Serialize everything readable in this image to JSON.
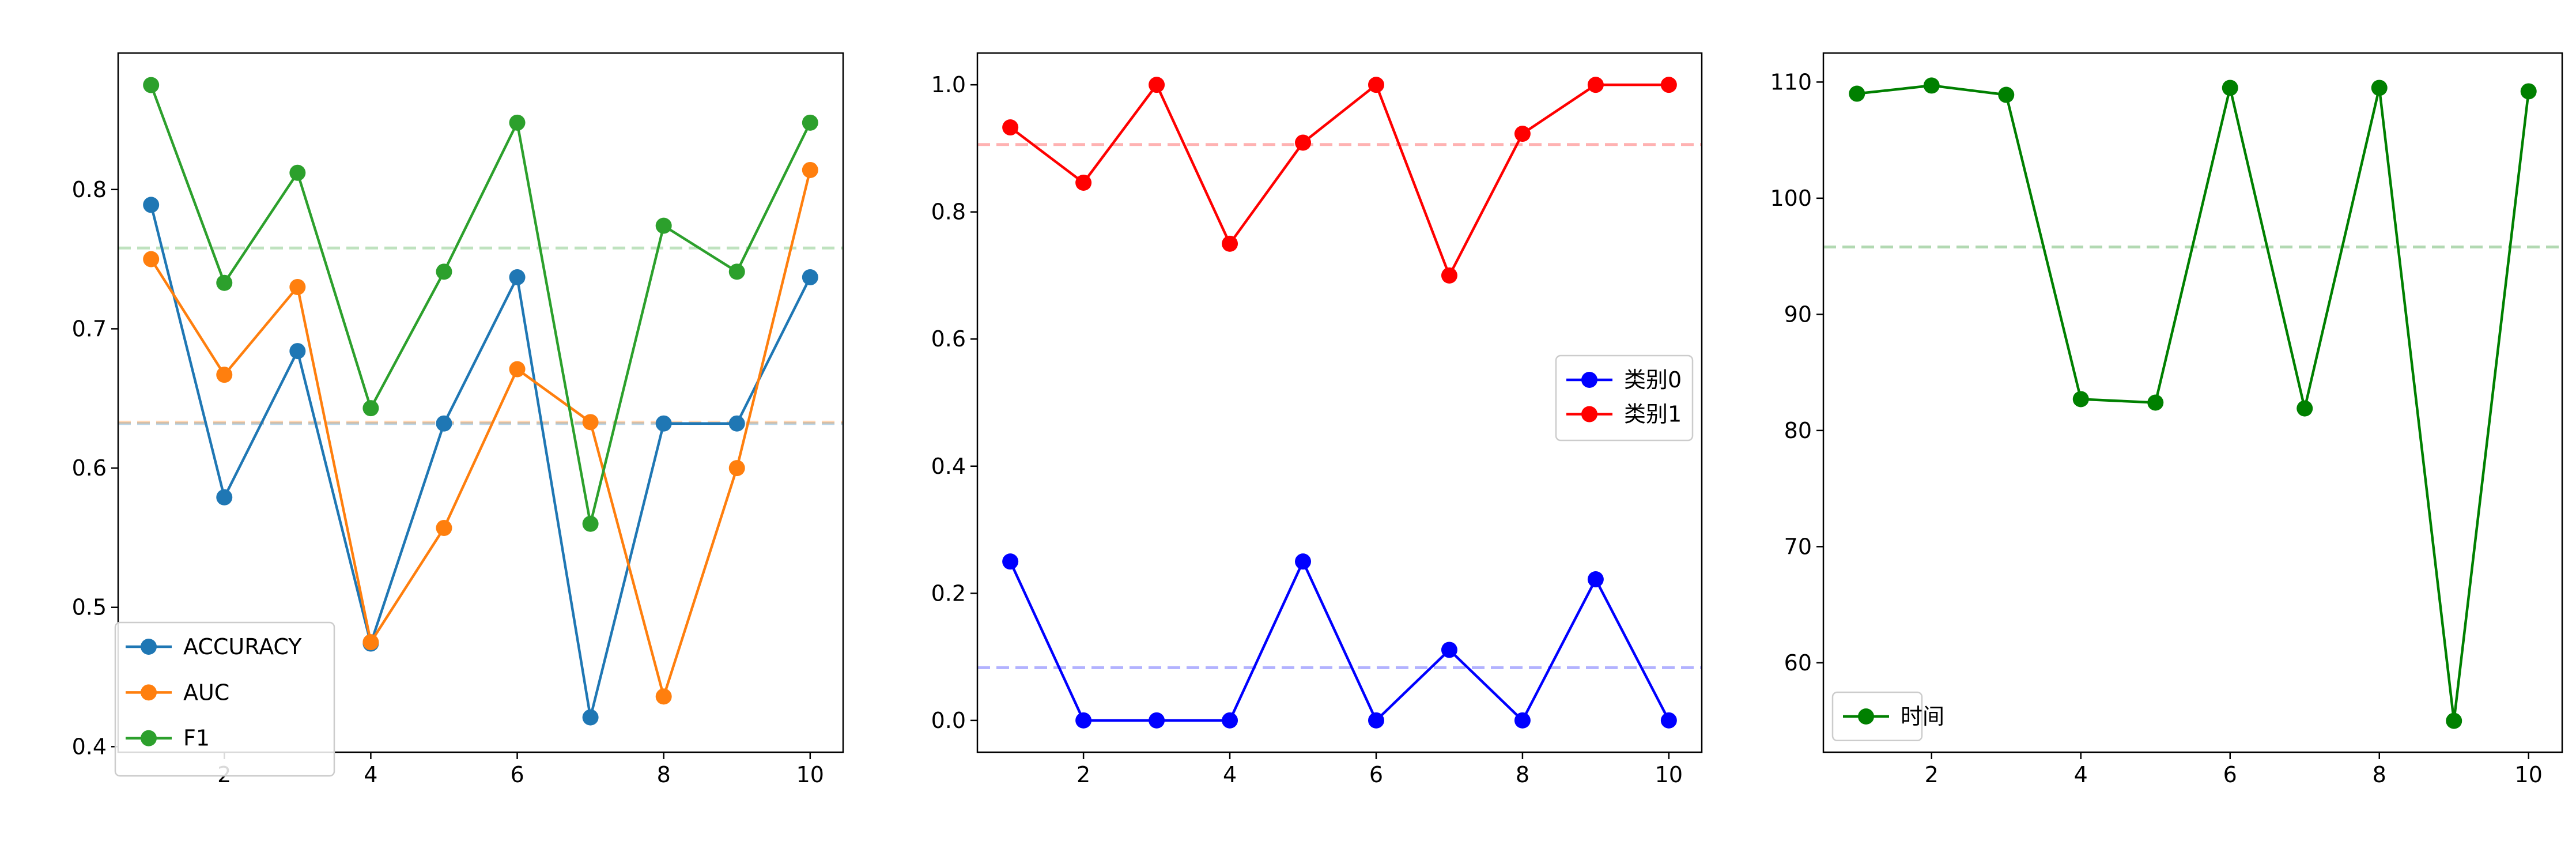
{
  "chart_data": [
    {
      "type": "line",
      "title": "",
      "xlabel": "",
      "ylabel": "",
      "x": [
        1,
        2,
        3,
        4,
        5,
        6,
        7,
        8,
        9,
        10
      ],
      "xlim": [
        0.55,
        10.45
      ],
      "ylim": [
        0.396,
        0.898
      ],
      "xticks": [
        2,
        4,
        6,
        8,
        10
      ],
      "yticks": [
        0.4,
        0.5,
        0.6,
        0.7,
        0.8
      ],
      "ytick_labels": [
        "0.4",
        "0.5",
        "0.6",
        "0.7",
        "0.8"
      ],
      "legend": "lower-left",
      "series": [
        {
          "name": "ACCURACY",
          "color": "#1f77b4",
          "values": [
            0.789,
            0.579,
            0.684,
            0.474,
            0.632,
            0.737,
            0.421,
            0.632,
            0.632,
            0.737
          ],
          "mean": 0.632
        },
        {
          "name": "AUC",
          "color": "#ff7f0e",
          "values": [
            0.75,
            0.667,
            0.73,
            0.475,
            0.557,
            0.671,
            0.633,
            0.436,
            0.6,
            0.814
          ],
          "mean": 0.633
        },
        {
          "name": "F1",
          "color": "#2ca02c",
          "values": [
            0.875,
            0.733,
            0.812,
            0.643,
            0.741,
            0.848,
            0.56,
            0.774,
            0.741,
            0.848
          ],
          "mean": 0.758
        }
      ]
    },
    {
      "type": "line",
      "title": "",
      "xlabel": "",
      "ylabel": "",
      "x": [
        1,
        2,
        3,
        4,
        5,
        6,
        7,
        8,
        9,
        10
      ],
      "xlim": [
        0.55,
        10.45
      ],
      "ylim": [
        -0.05,
        1.05
      ],
      "xticks": [
        2,
        4,
        6,
        8,
        10
      ],
      "yticks": [
        0.0,
        0.2,
        0.4,
        0.6,
        0.8,
        1.0
      ],
      "ytick_labels": [
        "0.0",
        "0.2",
        "0.4",
        "0.6",
        "0.8",
        "1.0"
      ],
      "legend": "center-right",
      "series": [
        {
          "name": "类别0",
          "color": "#0000ff",
          "values": [
            0.25,
            0.0,
            0.0,
            0.0,
            0.25,
            0.0,
            0.111,
            0.0,
            0.222,
            0.0
          ],
          "mean": 0.083
        },
        {
          "name": "类别1",
          "color": "#ff0000",
          "values": [
            0.933,
            0.846,
            1.0,
            0.75,
            0.909,
            1.0,
            0.7,
            0.923,
            1.0,
            1.0
          ],
          "mean": 0.906
        }
      ]
    },
    {
      "type": "line",
      "title": "",
      "xlabel": "",
      "ylabel": "",
      "x": [
        1,
        2,
        3,
        4,
        5,
        6,
        7,
        8,
        9,
        10
      ],
      "xlim": [
        0.55,
        10.45
      ],
      "ylim": [
        52.3,
        112.5
      ],
      "xticks": [
        2,
        4,
        6,
        8,
        10
      ],
      "yticks": [
        60,
        70,
        80,
        90,
        100,
        110
      ],
      "ytick_labels": [
        "60",
        "70",
        "80",
        "90",
        "100",
        "110"
      ],
      "legend": "lower-left",
      "series": [
        {
          "name": "时间",
          "color": "#008000",
          "values": [
            109.0,
            109.7,
            108.9,
            82.7,
            82.4,
            109.5,
            81.9,
            109.5,
            55.0,
            109.2
          ],
          "mean": 95.8
        }
      ]
    }
  ]
}
